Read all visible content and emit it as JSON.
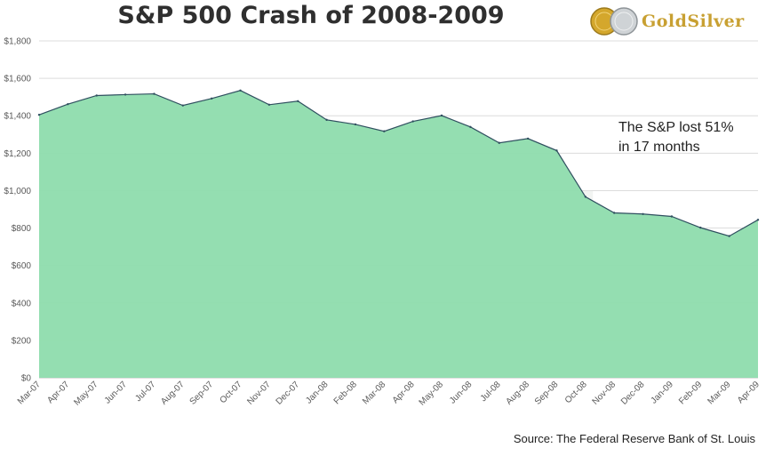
{
  "logo": {
    "text": "GoldSilver",
    "brand_color": "#c8a032"
  },
  "source": "Source: The Federal Reserve Bank of St. Louis",
  "chart_data": {
    "type": "area",
    "title": "S&P 500 Crash of 2008-2009",
    "xlabel": "",
    "ylabel": "",
    "ylim": [
      0,
      1800
    ],
    "y_ticks": [
      "$0",
      "$200",
      "$400",
      "$600",
      "$800",
      "$1,000",
      "$1,200",
      "$1,400",
      "$1,600",
      "$1,800"
    ],
    "y_tick_values": [
      0,
      200,
      400,
      600,
      800,
      1000,
      1200,
      1400,
      1600,
      1800
    ],
    "categories": [
      "Mar-07",
      "Apr-07",
      "May-07",
      "Jun-07",
      "Jul-07",
      "Aug-07",
      "Sep-07",
      "Oct-07",
      "Nov-07",
      "Dec-07",
      "Jan-08",
      "Feb-08",
      "Mar-08",
      "Apr-08",
      "May-08",
      "Jun-08",
      "Jul-08",
      "Aug-08",
      "Sep-08",
      "Oct-08",
      "Nov-08",
      "Dec-08",
      "Jan-09",
      "Feb-09",
      "Mar-09",
      "Apr-09"
    ],
    "values": [
      1405,
      1462,
      1508,
      1513,
      1517,
      1455,
      1492,
      1535,
      1459,
      1478,
      1378,
      1354,
      1317,
      1370,
      1401,
      1340,
      1255,
      1278,
      1214,
      967,
      881,
      875,
      862,
      802,
      757,
      844
    ],
    "grid": true,
    "fill_color": "#8edcad",
    "line_color": "#2f4f5f",
    "annotation": [
      "The S&P lost 51%",
      "in 17 months"
    ]
  }
}
